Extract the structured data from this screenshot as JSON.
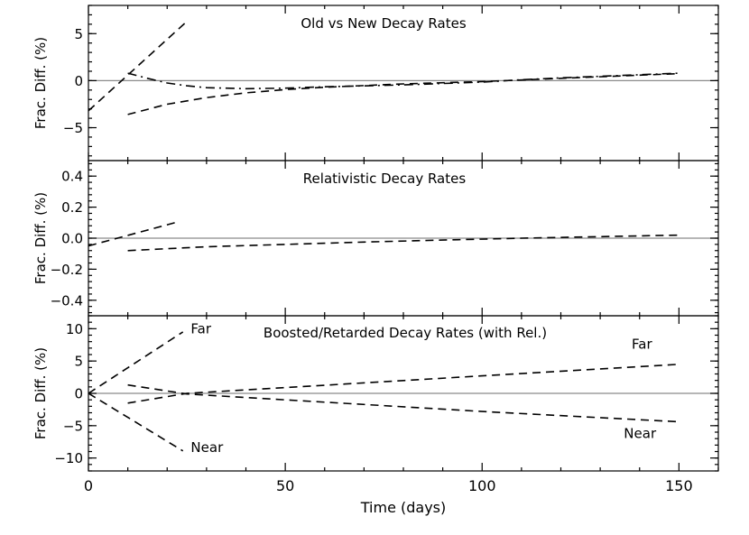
{
  "chart_data": [
    {
      "type": "line",
      "title": "Old vs New Decay Rates",
      "xlabel": "",
      "ylabel": "Frac. Diff. (%)",
      "xlim": [
        0,
        160
      ],
      "ylim": [
        -8.5,
        8
      ],
      "x_ticks": [
        0,
        50,
        100,
        150
      ],
      "x_tick_labels": [
        "",
        "",
        "",
        ""
      ],
      "y_ticks": [
        -5,
        0,
        5
      ],
      "y_tick_labels": [
        "−5",
        "0",
        "5"
      ],
      "zero_line": true,
      "series": [
        {
          "style": "dash",
          "x": [
            0,
            25
          ],
          "y": [
            -3.2,
            6.3
          ]
        },
        {
          "style": "dash",
          "x": [
            10,
            20,
            30,
            40,
            50,
            60,
            80,
            100,
            120,
            150
          ],
          "y": [
            -3.6,
            -2.5,
            -1.8,
            -1.3,
            -0.95,
            -0.7,
            -0.35,
            -0.1,
            0.25,
            0.75
          ]
        },
        {
          "style": "dashdot",
          "x": [
            10,
            15,
            20,
            25,
            30,
            40,
            50,
            60,
            80,
            100,
            110,
            120,
            150
          ],
          "y": [
            0.8,
            0.25,
            -0.25,
            -0.55,
            -0.75,
            -0.85,
            -0.8,
            -0.65,
            -0.45,
            -0.15,
            0.1,
            0.3,
            0.8
          ]
        }
      ],
      "annotations": []
    },
    {
      "type": "line",
      "title": "Relativistic Decay Rates",
      "xlabel": "",
      "ylabel": "Frac. Diff. (%)",
      "xlim": [
        0,
        160
      ],
      "ylim": [
        -0.5,
        0.5
      ],
      "x_ticks": [
        0,
        50,
        100,
        150
      ],
      "x_tick_labels": [
        "",
        "",
        "",
        ""
      ],
      "y_ticks": [
        -0.4,
        -0.2,
        0.0,
        0.2,
        0.4
      ],
      "y_tick_labels": [
        "−0.4",
        "−0.2",
        "0.0",
        "0.2",
        "0.4"
      ],
      "zero_line": true,
      "series": [
        {
          "style": "dash",
          "x": [
            0,
            22
          ],
          "y": [
            -0.05,
            0.1
          ]
        },
        {
          "style": "dash",
          "x": [
            10,
            30,
            50,
            70,
            90,
            110,
            130,
            150
          ],
          "y": [
            -0.08,
            -0.055,
            -0.04,
            -0.025,
            -0.012,
            0.0,
            0.01,
            0.02
          ]
        }
      ],
      "annotations": []
    },
    {
      "type": "line",
      "title": "Boosted/Retarded Decay Rates (with Rel.)",
      "xlabel": "Time (days)",
      "ylabel": "Frac. Diff. (%)",
      "xlim": [
        0,
        160
      ],
      "ylim": [
        -12,
        12
      ],
      "x_ticks": [
        0,
        50,
        100,
        150
      ],
      "x_tick_labels": [
        "0",
        "50",
        "100",
        "150"
      ],
      "y_ticks": [
        -10,
        -5,
        0,
        5,
        10
      ],
      "y_tick_labels": [
        "−10",
        "−5",
        "0",
        "5",
        "10"
      ],
      "zero_line": true,
      "series": [
        {
          "style": "dash",
          "x": [
            0,
            24
          ],
          "y": [
            0,
            9.5
          ]
        },
        {
          "style": "dash",
          "x": [
            0,
            24
          ],
          "y": [
            0,
            -8.9
          ]
        },
        {
          "style": "dash",
          "x": [
            10,
            25,
            50,
            75,
            100,
            125,
            150
          ],
          "y": [
            -1.5,
            0.0,
            0.9,
            1.8,
            2.7,
            3.6,
            4.5
          ]
        },
        {
          "style": "dash",
          "x": [
            10,
            25,
            50,
            75,
            100,
            125,
            150
          ],
          "y": [
            1.3,
            -0.1,
            -1.0,
            -1.9,
            -2.8,
            -3.6,
            -4.4
          ]
        }
      ],
      "annotations": [
        {
          "text": "Far",
          "x": 26,
          "y": 10.0
        },
        {
          "text": "Near",
          "x": 26,
          "y": -8.4
        },
        {
          "text": "Far",
          "x": 138,
          "y": 7.6
        },
        {
          "text": "Near",
          "x": 136,
          "y": -6.2
        }
      ]
    }
  ]
}
